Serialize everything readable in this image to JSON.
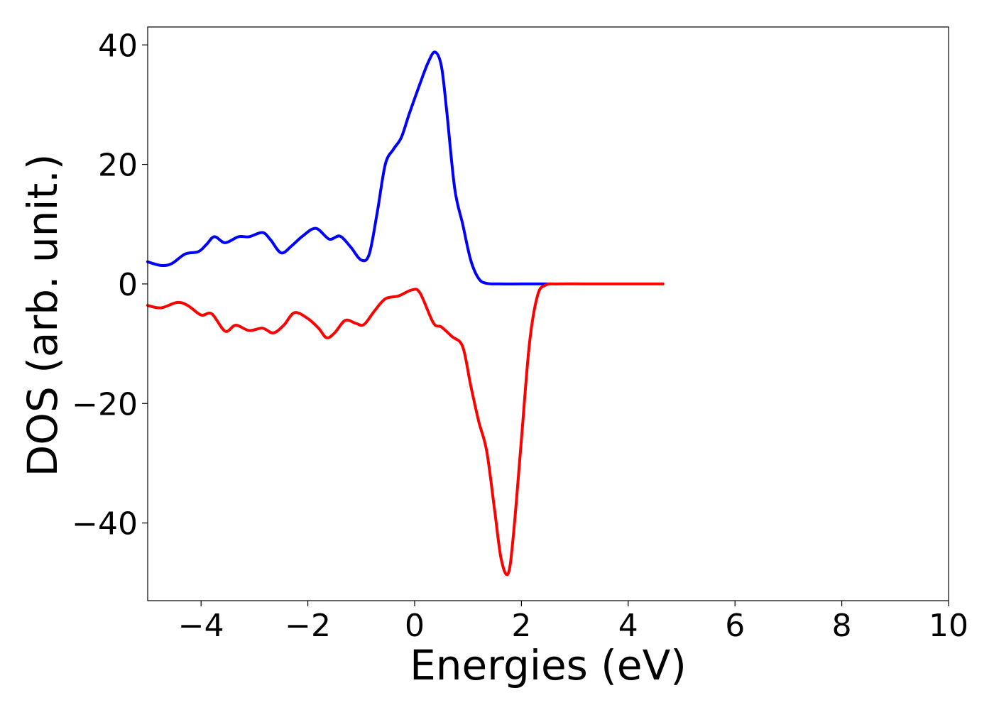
{
  "chart_data": {
    "type": "line",
    "title": "",
    "xlabel": "Energies (eV)",
    "ylabel": "DOS (arb. unit.)",
    "xlim": [
      -5,
      10
    ],
    "ylim": [
      -53,
      43
    ],
    "grid": false,
    "legend": "none",
    "x_ticks": [
      -4,
      -2,
      0,
      2,
      4,
      6,
      8,
      10
    ],
    "x_tick_labels": [
      "−4",
      "−2",
      "0",
      "2",
      "4",
      "6",
      "8",
      "10"
    ],
    "y_ticks": [
      -40,
      -20,
      0,
      20,
      40
    ],
    "y_tick_labels": [
      "−40",
      "−20",
      "0",
      "20",
      "40"
    ],
    "series": [
      {
        "color": "#0000ff",
        "points": [
          [
            -5.0,
            3.7
          ],
          [
            -4.75,
            3.1
          ],
          [
            -4.55,
            3.4
          ],
          [
            -4.3,
            5.0
          ],
          [
            -4.05,
            5.4
          ],
          [
            -3.9,
            6.6
          ],
          [
            -3.75,
            7.9
          ],
          [
            -3.55,
            6.9
          ],
          [
            -3.3,
            7.9
          ],
          [
            -3.1,
            7.9
          ],
          [
            -2.85,
            8.6
          ],
          [
            -2.7,
            7.4
          ],
          [
            -2.5,
            5.2
          ],
          [
            -2.3,
            6.4
          ],
          [
            -2.1,
            8.0
          ],
          [
            -1.85,
            9.3
          ],
          [
            -1.6,
            7.5
          ],
          [
            -1.4,
            8.0
          ],
          [
            -1.2,
            6.2
          ],
          [
            -1.0,
            4.0
          ],
          [
            -0.85,
            5.0
          ],
          [
            -0.7,
            12.0
          ],
          [
            -0.55,
            20.0
          ],
          [
            -0.4,
            22.5
          ],
          [
            -0.25,
            24.5
          ],
          [
            -0.1,
            28.5
          ],
          [
            0.1,
            33.5
          ],
          [
            0.25,
            37.0
          ],
          [
            0.38,
            38.8
          ],
          [
            0.5,
            36.5
          ],
          [
            0.6,
            29.0
          ],
          [
            0.75,
            16.0
          ],
          [
            0.9,
            10.0
          ],
          [
            1.05,
            4.0
          ],
          [
            1.2,
            0.9
          ],
          [
            1.35,
            0.1
          ],
          [
            1.6,
            0.0
          ],
          [
            2.0,
            0.0
          ],
          [
            2.55,
            0.0
          ]
        ]
      },
      {
        "color": "#ff0000",
        "points": [
          [
            -5.0,
            -3.6
          ],
          [
            -4.75,
            -4.0
          ],
          [
            -4.45,
            -3.1
          ],
          [
            -4.25,
            -3.6
          ],
          [
            -4.0,
            -5.2
          ],
          [
            -3.8,
            -5.0
          ],
          [
            -3.55,
            -7.9
          ],
          [
            -3.35,
            -6.9
          ],
          [
            -3.1,
            -7.8
          ],
          [
            -2.85,
            -7.4
          ],
          [
            -2.65,
            -8.2
          ],
          [
            -2.45,
            -6.9
          ],
          [
            -2.25,
            -4.8
          ],
          [
            -2.0,
            -5.8
          ],
          [
            -1.8,
            -7.4
          ],
          [
            -1.65,
            -9.0
          ],
          [
            -1.5,
            -8.2
          ],
          [
            -1.3,
            -6.1
          ],
          [
            -1.1,
            -6.6
          ],
          [
            -0.95,
            -6.8
          ],
          [
            -0.75,
            -4.5
          ],
          [
            -0.55,
            -2.5
          ],
          [
            -0.3,
            -2.0
          ],
          [
            -0.05,
            -1.0
          ],
          [
            0.1,
            -1.5
          ],
          [
            0.35,
            -6.5
          ],
          [
            0.5,
            -7.2
          ],
          [
            0.7,
            -8.8
          ],
          [
            0.9,
            -10.5
          ],
          [
            1.05,
            -17.0
          ],
          [
            1.2,
            -23.0
          ],
          [
            1.35,
            -28.0
          ],
          [
            1.5,
            -38.0
          ],
          [
            1.62,
            -46.0
          ],
          [
            1.75,
            -48.5
          ],
          [
            1.85,
            -42.0
          ],
          [
            2.0,
            -26.0
          ],
          [
            2.15,
            -10.0
          ],
          [
            2.3,
            -2.0
          ],
          [
            2.45,
            -0.2
          ],
          [
            2.7,
            0.0
          ],
          [
            3.5,
            0.0
          ],
          [
            4.65,
            0.0
          ]
        ]
      }
    ]
  }
}
